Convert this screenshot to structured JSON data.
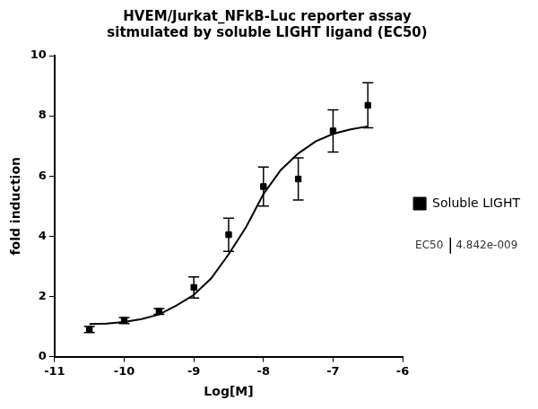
{
  "chart_data": {
    "type": "scatter",
    "title": [
      "HVEM/Jurkat_NFkB-Luc reporter assay",
      "sitmulated by soluble LIGHT ligand (EC50)"
    ],
    "x_label": "Log[M]",
    "y_label": "fold induction",
    "xlim": [
      -11,
      -6
    ],
    "xticks": [
      -11,
      -10,
      -9,
      -8,
      -7,
      -6
    ],
    "ylim": [
      0,
      10
    ],
    "yticks": [
      0,
      2,
      4,
      6,
      8,
      10
    ],
    "grid": false,
    "legend": "right",
    "series": [
      {
        "name": "Soluble LIGHT",
        "type": "scatter",
        "color": "#000000",
        "marker": "square",
        "x": [
          -10.5,
          -10,
          -9.5,
          -9,
          -8.5,
          -8,
          -7.5,
          -7,
          -6.5
        ],
        "values": [
          0.9,
          1.2,
          1.5,
          2.3,
          4.05,
          5.65,
          5.9,
          7.5,
          8.35
        ],
        "errors": [
          0.1,
          0.1,
          0.1,
          0.35,
          0.55,
          0.65,
          0.7,
          0.7,
          0.75
        ]
      },
      {
        "type": "line",
        "color": "#000000",
        "marker": "none",
        "line_style": "solid",
        "x": [
          -10.5,
          -10.25,
          -10,
          -9.75,
          -9.5,
          -9.25,
          -9,
          -8.75,
          -8.5,
          -8.25,
          -8,
          -7.75,
          -7.5,
          -7.25,
          -7,
          -6.75,
          -6.5
        ],
        "values": [
          1.08,
          1.1,
          1.15,
          1.25,
          1.4,
          1.7,
          2.05,
          2.6,
          3.4,
          4.3,
          5.4,
          6.2,
          6.75,
          7.15,
          7.4,
          7.55,
          7.65
        ]
      }
    ],
    "annotation": {
      "text": "EC50",
      "value": {
        "value": 4.842e-09,
        "label": "4.842e-009"
      }
    }
  }
}
